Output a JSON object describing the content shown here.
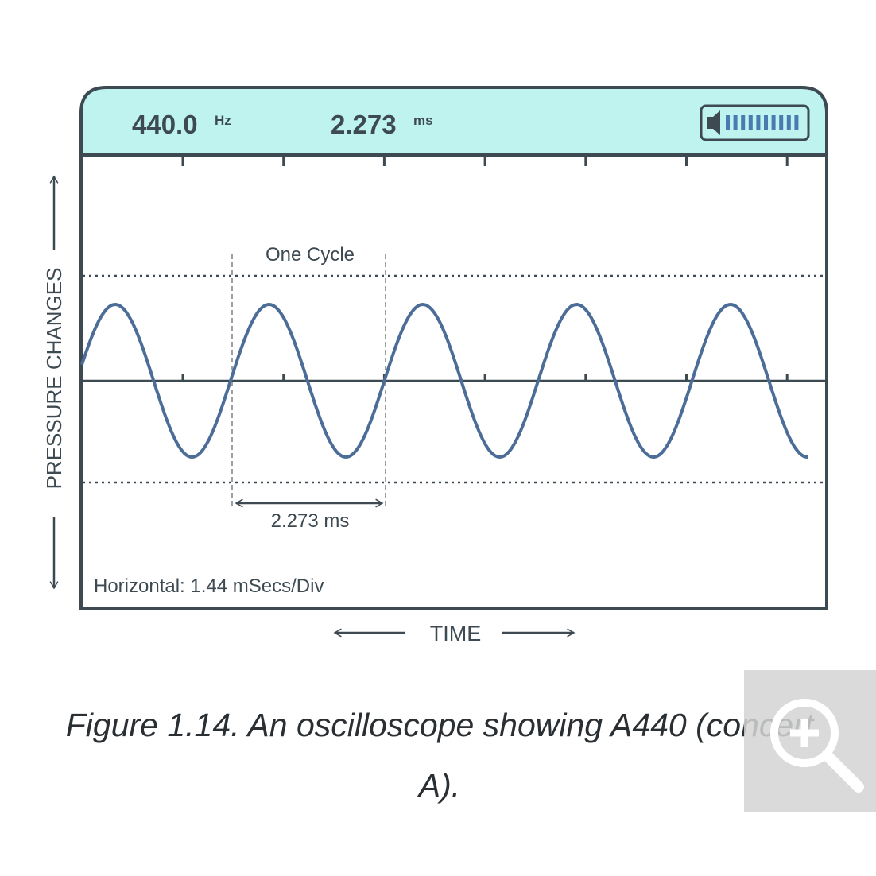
{
  "header": {
    "frequency": "440.0",
    "frequency_unit": "Hz",
    "period": "2.273",
    "period_unit": "ms"
  },
  "screen": {
    "cycle_label": "One Cycle",
    "period_label": "2.273 ms",
    "horizontal_label": "Horizontal: 1.44 mSecs/Div"
  },
  "axes": {
    "vertical_label": "PRESSURE CHANGES",
    "horizontal_label": "TIME"
  },
  "caption": {
    "lines": [
      "Figure 1.14. An oscilloscope showing A440 (concert",
      "A)."
    ]
  }
}
